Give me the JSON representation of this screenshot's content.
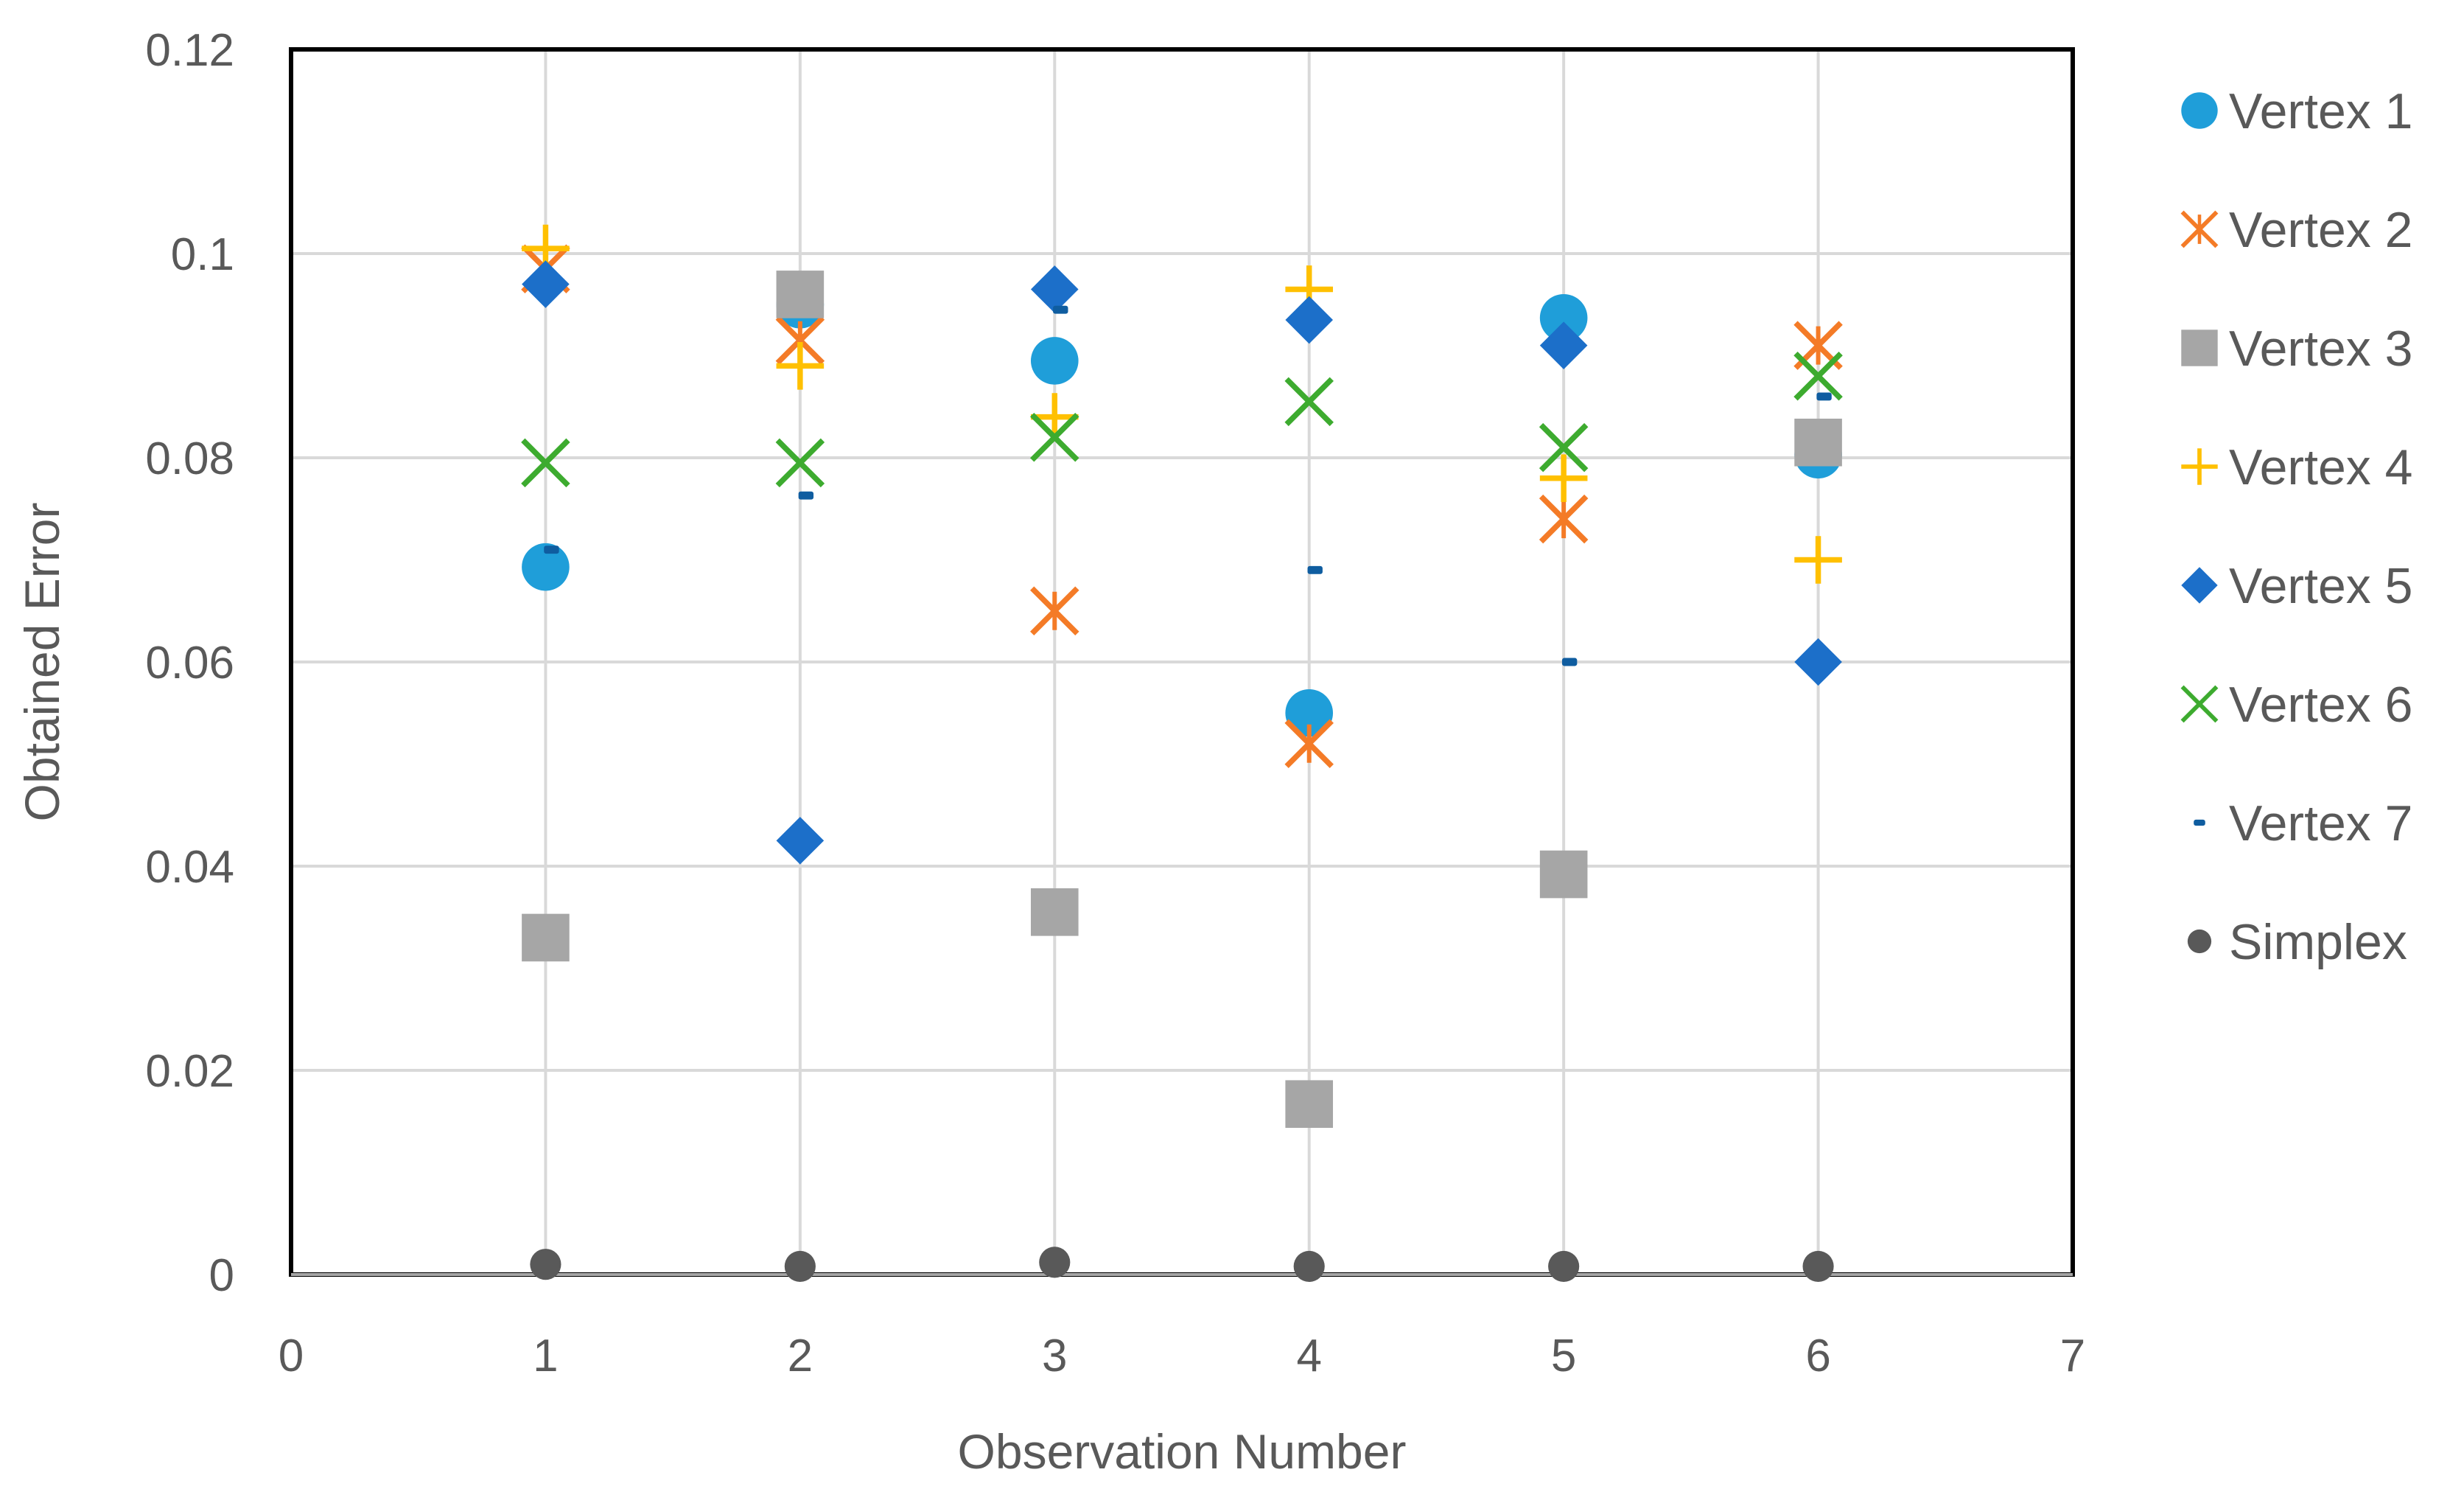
{
  "chart_data": {
    "type": "scatter",
    "title": "",
    "xlabel": "Observation Number",
    "ylabel": "Obtained Error",
    "xlim": [
      0,
      7
    ],
    "ylim": [
      0,
      0.12
    ],
    "xticks": [
      0,
      1,
      2,
      3,
      4,
      5,
      6,
      7
    ],
    "yticks": [
      0,
      0.02,
      0.04,
      0.06,
      0.08,
      0.1,
      0.12
    ],
    "ytick_labels": [
      "0",
      "0.02",
      "0.04",
      "0.06",
      "0.08",
      "0.1",
      "0.12"
    ],
    "grid": true,
    "legend_position": "right",
    "x": [
      1,
      2,
      3,
      4,
      5,
      6
    ],
    "series": [
      {
        "name": "Vertex 1",
        "marker": "circle",
        "color": "#1F9ED9",
        "values": [
          0.0693,
          0.095,
          0.0895,
          0.055,
          0.0937,
          0.0803
        ]
      },
      {
        "name": "Vertex 2",
        "marker": "asterisk-x",
        "color": "#F47B27",
        "values": [
          0.0985,
          0.0915,
          0.065,
          0.052,
          0.074,
          0.091
        ]
      },
      {
        "name": "Vertex 3",
        "marker": "square",
        "color": "#A6A6A6",
        "values": [
          0.033,
          0.096,
          0.0355,
          0.0167,
          0.0392,
          0.0815
        ]
      },
      {
        "name": "Vertex 4",
        "marker": "plus",
        "color": "#FFC000",
        "values": [
          0.1005,
          0.089,
          0.084,
          0.0965,
          0.078,
          0.07
        ]
      },
      {
        "name": "Vertex 5",
        "marker": "diamond",
        "color": "#1C6FC9",
        "values": [
          0.097,
          0.0425,
          0.0965,
          0.0935,
          0.091,
          0.06
        ]
      },
      {
        "name": "Vertex 6",
        "marker": "x",
        "color": "#3DAB2F",
        "values": [
          0.0795,
          0.0795,
          0.082,
          0.0855,
          0.081,
          0.088
        ]
      },
      {
        "name": "Vertex 7",
        "marker": "dash",
        "color": "#0F5DA0",
        "values": [
          0.071,
          0.0763,
          0.0945,
          0.069,
          0.06,
          0.086
        ]
      },
      {
        "name": "Simplex",
        "marker": "circle",
        "color": "#595959",
        "values": [
          0.001,
          0.0008,
          0.0012,
          0.0008,
          0.0008,
          0.0008
        ]
      }
    ]
  }
}
